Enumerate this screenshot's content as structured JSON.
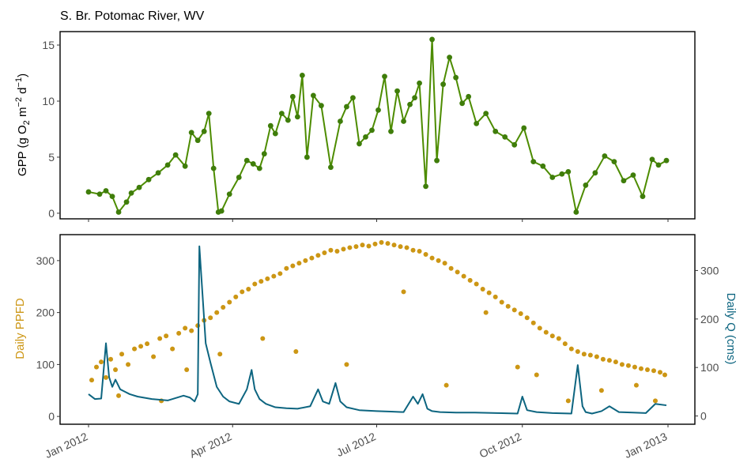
{
  "chart_data": [
    {
      "type": "line",
      "panel": "top",
      "title": "S. Br. Potomac River, WV",
      "ylabel": "GPP (g O2 m-2 d-1)",
      "ylabel_parts": {
        "base": "GPP (g O",
        "sub": "2",
        "mid1": " m",
        "sup1": "−2",
        "mid2": " d",
        "sup2": "−1",
        "end": ")"
      },
      "xlim": [
        "2012-01-01",
        "2013-01-01"
      ],
      "ylim": [
        -0.5,
        16.2
      ],
      "yticks": [
        0,
        5,
        10,
        15
      ],
      "ytick_labels": [
        "0",
        "5",
        "10",
        "15"
      ],
      "grid": false,
      "colors": {
        "line": "#4d8c00",
        "point": "#3f7d0a"
      },
      "series": [
        {
          "x": [
            "2012-01-01",
            "2012-01-08",
            "2012-01-12",
            "2012-01-16",
            "2012-01-20",
            "2012-01-25",
            "2012-01-28",
            "2012-02-02",
            "2012-02-08",
            "2012-02-14",
            "2012-02-20",
            "2012-02-25",
            "2012-03-02",
            "2012-03-06",
            "2012-03-10",
            "2012-03-14",
            "2012-03-17",
            "2012-03-20",
            "2012-03-23",
            "2012-03-25",
            "2012-03-30",
            "2012-04-05",
            "2012-04-10",
            "2012-04-14",
            "2012-04-18",
            "2012-04-21",
            "2012-04-25",
            "2012-04-28",
            "2012-05-02",
            "2012-05-06",
            "2012-05-09",
            "2012-05-12",
            "2012-05-15",
            "2012-05-18",
            "2012-05-22",
            "2012-05-27",
            "2012-06-02",
            "2012-06-08",
            "2012-06-12",
            "2012-06-16",
            "2012-06-20",
            "2012-06-24",
            "2012-06-28",
            "2012-07-02",
            "2012-07-06",
            "2012-07-10",
            "2012-07-14",
            "2012-07-18",
            "2012-07-22",
            "2012-07-25",
            "2012-07-28",
            "2012-08-01",
            "2012-08-05",
            "2012-08-08",
            "2012-08-12",
            "2012-08-16",
            "2012-08-20",
            "2012-08-24",
            "2012-08-28",
            "2012-09-02",
            "2012-09-08",
            "2012-09-14",
            "2012-09-20",
            "2012-09-26",
            "2012-10-02",
            "2012-10-08",
            "2012-10-14",
            "2012-10-20",
            "2012-10-26",
            "2012-10-30",
            "2012-11-04",
            "2012-11-10",
            "2012-11-16",
            "2012-11-22",
            "2012-11-28",
            "2012-12-04",
            "2012-12-10",
            "2012-12-16",
            "2012-12-22",
            "2012-12-26",
            "2012-12-31"
          ],
          "y": [
            1.9,
            1.7,
            2.0,
            1.5,
            0.1,
            1.0,
            1.8,
            2.3,
            3.0,
            3.6,
            4.3,
            5.2,
            4.2,
            7.2,
            6.5,
            7.3,
            8.9,
            4.0,
            0.1,
            0.2,
            1.7,
            3.2,
            4.7,
            4.4,
            4.0,
            5.3,
            7.8,
            7.1,
            8.9,
            8.3,
            10.4,
            8.6,
            12.3,
            5.0,
            10.5,
            9.6,
            4.1,
            8.2,
            9.5,
            10.3,
            6.2,
            6.8,
            7.4,
            9.2,
            12.2,
            7.3,
            10.9,
            8.2,
            9.7,
            10.3,
            11.6,
            2.4,
            15.5,
            4.7,
            11.5,
            13.9,
            12.1,
            9.8,
            10.4,
            8.0,
            8.9,
            7.3,
            6.8,
            6.1,
            7.6,
            4.6,
            4.2,
            3.2,
            3.5,
            3.7,
            0.1,
            2.5,
            3.6,
            5.1,
            4.6,
            2.9,
            3.4,
            1.5,
            4.8,
            4.3,
            4.7
          ]
        }
      ]
    },
    {
      "type": "scatter+line",
      "panel": "bottom",
      "ylabel": "Daily PPFD",
      "y2label": "Daily Q (cms)",
      "xlim": [
        "2012-01-01",
        "2013-01-01"
      ],
      "xticks": [
        "2012-01-01",
        "2012-04-01",
        "2012-07-01",
        "2012-10-01",
        "2013-01-01"
      ],
      "xtick_labels": [
        "Jan 2012",
        "Apr 2012",
        "Jul 2012",
        "Oct 2012",
        "Jan 2013"
      ],
      "ylim": [
        -15,
        350
      ],
      "yticks": [
        0,
        100,
        200,
        300
      ],
      "ytick_labels": [
        "0",
        "100",
        "200",
        "300"
      ],
      "y2lim": [
        -17,
        374
      ],
      "y2ticks": [
        0,
        100,
        200,
        300
      ],
      "y2tick_labels": [
        "0",
        "100",
        "200",
        "300"
      ],
      "grid": false,
      "colors": {
        "ppfd": "#cc9614",
        "q": "#0d6580"
      },
      "series": [
        {
          "name": "Daily PPFD",
          "kind": "scatter",
          "axis": "left",
          "x": [
            "2012-01-03",
            "2012-01-06",
            "2012-01-09",
            "2012-01-12",
            "2012-01-15",
            "2012-01-18",
            "2012-01-22",
            "2012-01-26",
            "2012-01-30",
            "2012-02-03",
            "2012-02-07",
            "2012-02-11",
            "2012-02-15",
            "2012-02-19",
            "2012-02-23",
            "2012-02-27",
            "2012-03-02",
            "2012-03-06",
            "2012-03-10",
            "2012-03-14",
            "2012-03-18",
            "2012-03-22",
            "2012-03-26",
            "2012-03-30",
            "2012-04-03",
            "2012-04-07",
            "2012-04-11",
            "2012-04-15",
            "2012-04-19",
            "2012-04-23",
            "2012-04-27",
            "2012-05-01",
            "2012-05-05",
            "2012-05-09",
            "2012-05-13",
            "2012-05-17",
            "2012-05-21",
            "2012-05-25",
            "2012-05-29",
            "2012-06-02",
            "2012-06-06",
            "2012-06-10",
            "2012-06-14",
            "2012-06-18",
            "2012-06-22",
            "2012-06-26",
            "2012-06-30",
            "2012-07-04",
            "2012-07-08",
            "2012-07-12",
            "2012-07-16",
            "2012-07-20",
            "2012-07-24",
            "2012-07-28",
            "2012-08-01",
            "2012-08-05",
            "2012-08-09",
            "2012-08-13",
            "2012-08-17",
            "2012-08-21",
            "2012-08-25",
            "2012-08-29",
            "2012-09-02",
            "2012-09-06",
            "2012-09-10",
            "2012-09-14",
            "2012-09-18",
            "2012-09-22",
            "2012-09-26",
            "2012-09-30",
            "2012-10-04",
            "2012-10-08",
            "2012-10-12",
            "2012-10-16",
            "2012-10-20",
            "2012-10-24",
            "2012-10-28",
            "2012-11-01",
            "2012-11-05",
            "2012-11-09",
            "2012-11-13",
            "2012-11-17",
            "2012-11-21",
            "2012-11-25",
            "2012-11-29",
            "2012-12-03",
            "2012-12-07",
            "2012-12-11",
            "2012-12-15",
            "2012-12-19",
            "2012-12-23",
            "2012-12-27",
            "2012-12-30",
            "2012-01-20",
            "2012-02-16",
            "2012-03-03",
            "2012-03-24",
            "2012-04-20",
            "2012-05-11",
            "2012-06-12",
            "2012-07-18",
            "2012-08-14",
            "2012-09-08",
            "2012-09-28",
            "2012-10-10",
            "2012-10-30",
            "2012-11-20",
            "2012-12-12",
            "2012-12-24"
          ],
          "y": [
            70,
            95,
            105,
            75,
            110,
            90,
            120,
            100,
            130,
            135,
            140,
            115,
            150,
            155,
            130,
            160,
            170,
            165,
            175,
            185,
            190,
            200,
            210,
            220,
            230,
            240,
            245,
            255,
            260,
            265,
            270,
            275,
            285,
            290,
            295,
            300,
            305,
            310,
            315,
            320,
            318,
            322,
            325,
            327,
            330,
            328,
            332,
            335,
            333,
            330,
            327,
            325,
            320,
            318,
            312,
            305,
            300,
            295,
            285,
            278,
            270,
            262,
            255,
            245,
            238,
            230,
            220,
            212,
            205,
            198,
            190,
            180,
            170,
            162,
            155,
            150,
            140,
            130,
            125,
            120,
            118,
            115,
            110,
            108,
            105,
            100,
            98,
            95,
            92,
            90,
            88,
            85,
            80,
            40,
            30,
            90,
            120,
            150,
            125,
            100,
            240,
            60,
            200,
            95,
            80,
            30,
            50,
            60,
            30
          ]
        },
        {
          "name": "Daily Q (cms)",
          "kind": "line",
          "axis": "right",
          "x": [
            "2012-01-01",
            "2012-01-05",
            "2012-01-09",
            "2012-01-12",
            "2012-01-14",
            "2012-01-16",
            "2012-01-18",
            "2012-01-21",
            "2012-01-24",
            "2012-01-27",
            "2012-02-01",
            "2012-02-10",
            "2012-02-20",
            "2012-03-01",
            "2012-03-05",
            "2012-03-08",
            "2012-03-10",
            "2012-03-11",
            "2012-03-13",
            "2012-03-15",
            "2012-03-18",
            "2012-03-22",
            "2012-03-26",
            "2012-03-30",
            "2012-04-05",
            "2012-04-10",
            "2012-04-13",
            "2012-04-15",
            "2012-04-18",
            "2012-04-22",
            "2012-04-28",
            "2012-05-05",
            "2012-05-12",
            "2012-05-20",
            "2012-05-25",
            "2012-05-28",
            "2012-06-01",
            "2012-06-05",
            "2012-06-08",
            "2012-06-12",
            "2012-06-20",
            "2012-07-01",
            "2012-07-10",
            "2012-07-18",
            "2012-07-24",
            "2012-07-27",
            "2012-07-30",
            "2012-08-02",
            "2012-08-05",
            "2012-08-10",
            "2012-08-20",
            "2012-09-01",
            "2012-09-15",
            "2012-09-28",
            "2012-10-01",
            "2012-10-04",
            "2012-10-10",
            "2012-10-20",
            "2012-11-01",
            "2012-11-05",
            "2012-11-08",
            "2012-11-10",
            "2012-11-14",
            "2012-11-20",
            "2012-11-25",
            "2012-12-01",
            "2012-12-10",
            "2012-12-18",
            "2012-12-24",
            "2012-12-31"
          ],
          "y": [
            45,
            35,
            36,
            150,
            80,
            60,
            75,
            55,
            50,
            45,
            40,
            35,
            32,
            42,
            38,
            30,
            45,
            350,
            250,
            150,
            110,
            60,
            40,
            30,
            25,
            55,
            95,
            55,
            35,
            25,
            18,
            16,
            15,
            20,
            55,
            30,
            25,
            68,
            30,
            18,
            12,
            10,
            9,
            8,
            40,
            25,
            45,
            15,
            10,
            8,
            7,
            7,
            6,
            5,
            40,
            12,
            8,
            6,
            5,
            105,
            20,
            8,
            5,
            10,
            20,
            8,
            7,
            6,
            25,
            22
          ]
        }
      ]
    }
  ]
}
